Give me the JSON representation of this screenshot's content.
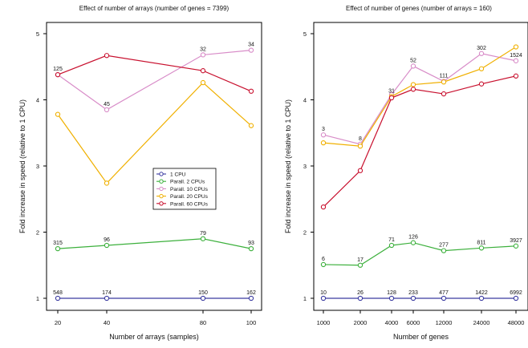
{
  "chart_data": [
    {
      "type": "line",
      "title": "Effect of number of arrays (number of genes = 7399)",
      "xlabel": "Number of arrays (samples)",
      "ylabel": "Fold increase in speed (relative to 1 CPU)",
      "x_scale": "categorical-uneven",
      "x": [
        20,
        40,
        80,
        100
      ],
      "x_tick_labels": [
        "20",
        "40",
        "80",
        "100"
      ],
      "ylim": [
        1,
        5
      ],
      "y_ticks": [
        1,
        2,
        3,
        4,
        5
      ],
      "grid": false,
      "legend": {
        "placement": "center-right",
        "entries": [
          "1 CPU",
          "Parall. 2 CPUs",
          "Parall. 10 CPUs",
          "Parall. 20 CPUs",
          "Parall. 60 CPUs"
        ]
      },
      "series": [
        {
          "name": "1 CPU",
          "color": "#3a3aa0",
          "values": [
            1.0,
            1.0,
            1.0,
            1.0
          ],
          "labels": [
            "548",
            "174",
            "150",
            "162"
          ]
        },
        {
          "name": "Parall. 2 CPUs",
          "color": "#3cb03c",
          "values": [
            1.75,
            1.8,
            1.9,
            1.75
          ],
          "labels": [
            "315",
            "96",
            "79",
            "93"
          ]
        },
        {
          "name": "Parall. 10 CPUs",
          "color": "#d88cc8",
          "values": [
            4.38,
            3.85,
            4.68,
            4.75
          ],
          "labels": [
            "",
            "45",
            "32",
            "34"
          ]
        },
        {
          "name": "Parall. 20 CPUs",
          "color": "#f0b000",
          "values": [
            3.78,
            2.74,
            4.26,
            3.61
          ],
          "labels": [
            "",
            "",
            "",
            ""
          ]
        },
        {
          "name": "Parall. 60 CPUs",
          "color": "#c8102e",
          "values": [
            4.38,
            4.67,
            4.44,
            4.13
          ],
          "labels": [
            "125",
            "",
            "",
            ""
          ]
        }
      ]
    },
    {
      "type": "line",
      "title": "Effect of number of genes (number of arrays = 160)",
      "xlabel": "Number of genes",
      "ylabel": "Fold increase in speed (relative to 1 CPU)",
      "x_scale": "log",
      "x": [
        1000,
        2000,
        4000,
        6000,
        12000,
        24000,
        48000
      ],
      "x_tick_labels": [
        "1000",
        "2000",
        "4000",
        "6000",
        "12000",
        "24000",
        "48000"
      ],
      "ylim": [
        1,
        5
      ],
      "y_ticks": [
        1,
        2,
        3,
        4,
        5
      ],
      "grid": false,
      "series": [
        {
          "name": "1 CPU",
          "color": "#3a3aa0",
          "values": [
            1.0,
            1.0,
            1.0,
            1.0,
            1.0,
            1.0,
            1.0
          ],
          "labels": [
            "10",
            "26",
            "128",
            "233",
            "477",
            "1422",
            "6992"
          ]
        },
        {
          "name": "Parall. 2 CPUs",
          "color": "#3cb03c",
          "values": [
            1.51,
            1.5,
            1.8,
            1.84,
            1.72,
            1.76,
            1.79
          ],
          "labels": [
            "6",
            "17",
            "71",
            "126",
            "277",
            "811",
            "3927"
          ]
        },
        {
          "name": "Parall. 10 CPUs",
          "color": "#d88cc8",
          "values": [
            3.47,
            3.33,
            4.08,
            4.51,
            4.28,
            4.7,
            4.59
          ],
          "labels": [
            "3",
            "8",
            "",
            "52",
            "111",
            "302",
            "1524"
          ]
        },
        {
          "name": "Parall. 20 CPUs",
          "color": "#f0b000",
          "values": [
            3.35,
            3.3,
            4.05,
            4.23,
            4.27,
            4.47,
            4.8
          ],
          "labels": [
            "",
            "",
            "31",
            "",
            "",
            "",
            ""
          ]
        },
        {
          "name": "Parall. 60 CPUs",
          "color": "#c8102e",
          "values": [
            2.38,
            2.93,
            4.03,
            4.16,
            4.09,
            4.24,
            4.36
          ],
          "labels": [
            "",
            "",
            "",
            "",
            "",
            "",
            ""
          ]
        }
      ]
    }
  ]
}
